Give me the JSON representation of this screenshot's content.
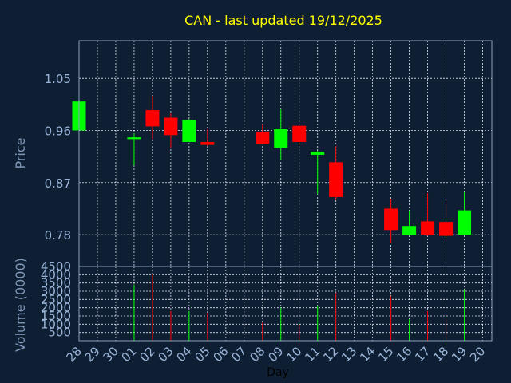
{
  "chart_data": {
    "type": "candlestick",
    "title": "CAN - last updated 19/12/2025",
    "ylabel": "Price",
    "volume_ylabel": "Volume (0000)",
    "xlabel": "Day",
    "x_tick_labels": [
      "28",
      "29",
      "30",
      "01",
      "02",
      "03",
      "04",
      "05",
      "06",
      "07",
      "08",
      "09",
      "10",
      "11",
      "12",
      "13",
      "14",
      "15",
      "16",
      "17",
      "18",
      "19",
      "20"
    ],
    "price_ylim": [
      0.725,
      1.115
    ],
    "price_ticks": [
      0.78,
      0.87,
      0.96,
      1.05
    ],
    "volume_ylim": [
      0,
      4500
    ],
    "volume_ticks": [
      500,
      1000,
      1500,
      2000,
      2500,
      3000,
      3500,
      4000,
      4500
    ],
    "up_color": "#00ff00",
    "down_color": "#ff0000",
    "candles": [
      {
        "day": "28",
        "open": 0.96,
        "high": 1.01,
        "low": 0.96,
        "close": 1.01,
        "volume": 0
      },
      {
        "day": "01",
        "open": 0.945,
        "high": 0.955,
        "low": 0.9,
        "close": 0.948,
        "volume": 3400
      },
      {
        "day": "02",
        "open": 0.995,
        "high": 1.02,
        "low": 0.945,
        "close": 0.967,
        "volume": 4000
      },
      {
        "day": "03",
        "open": 0.982,
        "high": 0.99,
        "low": 0.93,
        "close": 0.952,
        "volume": 1800
      },
      {
        "day": "04",
        "open": 0.94,
        "high": 0.98,
        "low": 0.94,
        "close": 0.978,
        "volume": 1800
      },
      {
        "day": "05",
        "open": 0.94,
        "high": 0.962,
        "low": 0.933,
        "close": 0.935,
        "volume": 1700
      },
      {
        "day": "08",
        "open": 0.958,
        "high": 0.97,
        "low": 0.937,
        "close": 0.937,
        "volume": 1100
      },
      {
        "day": "09",
        "open": 0.93,
        "high": 0.998,
        "low": 0.91,
        "close": 0.962,
        "volume": 2000
      },
      {
        "day": "10",
        "open": 0.968,
        "high": 0.968,
        "low": 0.935,
        "close": 0.94,
        "volume": 1000
      },
      {
        "day": "11",
        "open": 0.918,
        "high": 0.925,
        "low": 0.85,
        "close": 0.923,
        "volume": 2100
      },
      {
        "day": "12",
        "open": 0.905,
        "high": 0.933,
        "low": 0.84,
        "close": 0.845,
        "volume": 2900
      },
      {
        "day": "15",
        "open": 0.825,
        "high": 0.842,
        "low": 0.765,
        "close": 0.788,
        "volume": 2700
      },
      {
        "day": "16",
        "open": 0.779,
        "high": 0.822,
        "low": 0.778,
        "close": 0.795,
        "volume": 1300
      },
      {
        "day": "17",
        "open": 0.803,
        "high": 0.852,
        "low": 0.778,
        "close": 0.78,
        "volume": 1800
      },
      {
        "day": "18",
        "open": 0.802,
        "high": 0.84,
        "low": 0.775,
        "close": 0.778,
        "volume": 1600
      },
      {
        "day": "19",
        "open": 0.78,
        "high": 0.855,
        "low": 0.78,
        "close": 0.822,
        "volume": 3100
      }
    ]
  }
}
